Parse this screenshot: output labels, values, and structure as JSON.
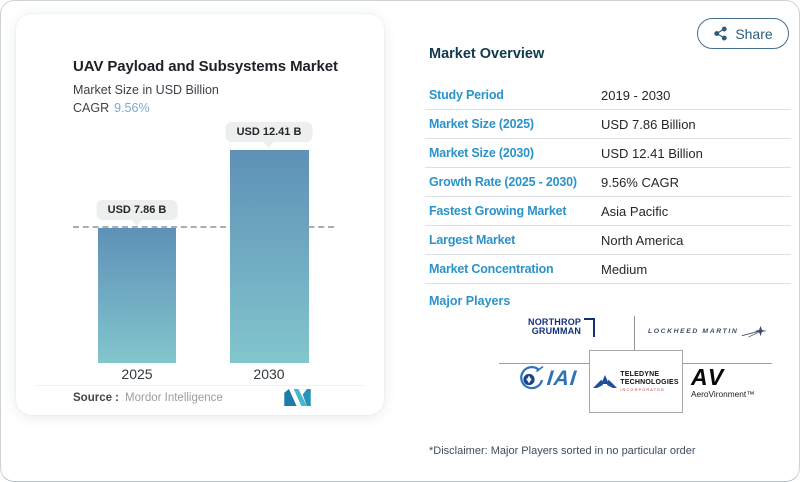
{
  "share": {
    "label": "Share"
  },
  "chart": {
    "title": "UAV Payload and Subsystems Market",
    "subtitle": "Market Size in USD Billion",
    "cagr_label": "CAGR",
    "cagr_value": "9.56%",
    "source_label": "Source :",
    "source_value": "Mordor Intelligence"
  },
  "chart_data": {
    "type": "bar",
    "title": "UAV Payload and Subsystems Market",
    "subtitle": "Market Size in USD Billion",
    "unit": "USD Billion",
    "categories": [
      "2025",
      "2030"
    ],
    "values": [
      7.86,
      12.41
    ],
    "value_labels": [
      "USD 7.86 B",
      "USD 12.41 B"
    ],
    "cagr": "9.56%",
    "ylim": [
      0,
      12.41
    ],
    "grid": "off",
    "legend": "none",
    "reference_line": {
      "style": "dashed",
      "at_value": 7.86
    },
    "bar_gradient_top": "#5d91b6",
    "bar_gradient_bottom": "#82c6cd"
  },
  "overview": {
    "heading": "Market Overview",
    "rows": [
      {
        "label": "Study Period",
        "value": "2019 - 2030"
      },
      {
        "label": "Market Size (2025)",
        "value": "USD 7.86 Billion"
      },
      {
        "label": "Market Size (2030)",
        "value": "USD 12.41 Billion"
      },
      {
        "label": "Growth Rate (2025 - 2030)",
        "value": "9.56% CAGR"
      },
      {
        "label": "Fastest Growing Market",
        "value": "Asia Pacific"
      },
      {
        "label": "Largest Market",
        "value": "North America"
      },
      {
        "label": "Market Concentration",
        "value": "Medium"
      }
    ],
    "major_players_label": "Major Players",
    "players": [
      "Northrop Grumman",
      "Lockheed Martin",
      "IAI",
      "Teledyne Technologies Incorporated",
      "AeroVironment"
    ]
  },
  "logos": {
    "northrop_line1": "NORTHROP",
    "northrop_line2": "GRUMMAN",
    "lockheed": "LOCKHEED MARTIN",
    "iai": "IAI",
    "teledyne_line1": "TELEDYNE",
    "teledyne_line2": "TECHNOLOGIES",
    "teledyne_line3": "INCORPORATED",
    "av": "AV",
    "av_sub": "AeroVironment™"
  },
  "disclaimer": "*Disclaimer: Major Players sorted in no particular order",
  "colors": {
    "accent_blue": "#2b93c9",
    "heading_navy": "#11394f",
    "cagr_blue": "#79accf",
    "bar_top": "#5d91b6",
    "bar_bottom": "#82c6cd",
    "pill_bg": "#edefee",
    "share_teal": "#2d5c7c",
    "mi_teal": "#46b8cc",
    "mi_blue": "#1d7ca8"
  }
}
